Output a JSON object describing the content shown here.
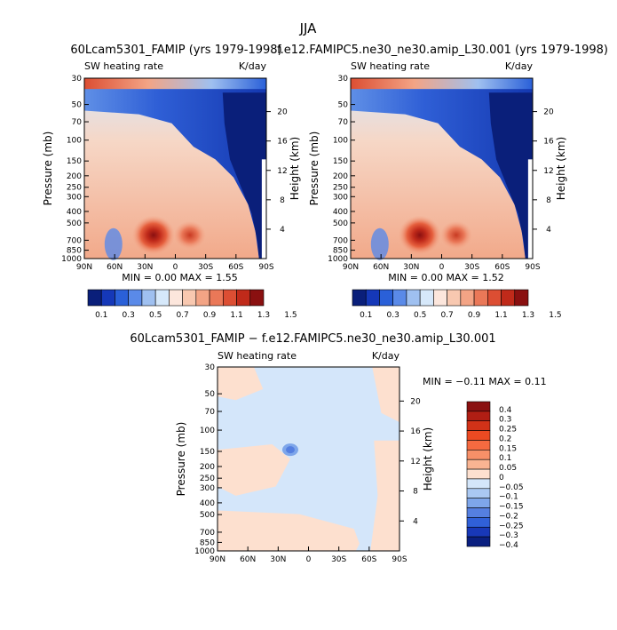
{
  "figure": {
    "main_title": "JJA",
    "colorbar_labels": [
      "0.1",
      "0.3",
      "0.5",
      "0.7",
      "0.9",
      "1.1",
      "1.3",
      "1.5"
    ],
    "colorbar_colors": [
      "#0a1f7a",
      "#1538b8",
      "#2a60d8",
      "#5a8ae8",
      "#9fc0f0",
      "#d6e8fa",
      "#fce6dc",
      "#f8c8b0",
      "#f3a485",
      "#ea7858",
      "#dc4e33",
      "#c02a1a",
      "#8a1010"
    ],
    "diff_colorbar_labels": [
      "0.4",
      "0.3",
      "0.25",
      "0.2",
      "0.15",
      "0.1",
      "0.05",
      "0",
      "−0.05",
      "−0.1",
      "−0.15",
      "−0.2",
      "−0.25",
      "−0.3",
      "−0.4"
    ],
    "diff_colorbar_colors": [
      "#8a1010",
      "#b01e14",
      "#d23218",
      "#ec4a22",
      "#f56a40",
      "#f79068",
      "#f9b492",
      "#fde0cf",
      "#d4e6fa",
      "#aac8f2",
      "#7ea6ea",
      "#557fe0",
      "#3060d8",
      "#1838b8",
      "#0a1f80"
    ]
  },
  "chart_data": [
    {
      "type": "heatmap",
      "title": "60Lcam5301_FAMIP (yrs 1979-1998)",
      "subtitle_left": "SW heating rate",
      "subtitle_right": "K/day",
      "xlabel": "",
      "ylabel": "Pressure (mb)",
      "ylabel_right": "Height (km)",
      "x_ticks": [
        "90N",
        "60N",
        "30N",
        "0",
        "30S",
        "60S",
        "90S"
      ],
      "y_ticks": [
        "1000",
        "850",
        "700",
        "500",
        "400",
        "300",
        "250",
        "200",
        "150",
        "100",
        "70",
        "50",
        "30"
      ],
      "y_ticks_right": [
        "4",
        "8",
        "12",
        "16",
        "20"
      ],
      "stats": "MIN =     0.00   MAX =     1.55",
      "min": 0.0,
      "max": 1.55
    },
    {
      "type": "heatmap",
      "title": "f.e12.FAMIPC5.ne30_ne30.amip_L30.001 (yrs 1979-1998)",
      "subtitle_left": "SW heating rate",
      "subtitle_right": "K/day",
      "xlabel": "",
      "ylabel": "Pressure (mb)",
      "ylabel_right": "Height (km)",
      "x_ticks": [
        "90N",
        "60N",
        "30N",
        "0",
        "30S",
        "60S",
        "90S"
      ],
      "y_ticks": [
        "1000",
        "850",
        "700",
        "500",
        "400",
        "300",
        "250",
        "200",
        "150",
        "100",
        "70",
        "50",
        "30"
      ],
      "y_ticks_right": [
        "4",
        "8",
        "12",
        "16",
        "20"
      ],
      "stats": "MIN =     0.00   MAX =     1.52",
      "min": 0.0,
      "max": 1.52
    },
    {
      "type": "heatmap",
      "title": "60Lcam5301_FAMIP − f.e12.FAMIPC5.ne30_ne30.amip_L30.001",
      "subtitle_left": "SW heating rate",
      "subtitle_right": "K/day",
      "xlabel": "",
      "ylabel": "Pressure (mb)",
      "ylabel_right": "Height (km)",
      "x_ticks": [
        "90N",
        "60N",
        "30N",
        "0",
        "30S",
        "60S",
        "90S"
      ],
      "y_ticks": [
        "1000",
        "850",
        "700",
        "500",
        "400",
        "300",
        "250",
        "200",
        "150",
        "100",
        "70",
        "50",
        "30"
      ],
      "y_ticks_right": [
        "4",
        "8",
        "12",
        "16",
        "20"
      ],
      "stats": "MIN =   −0.11   MAX =     0.11",
      "min": -0.11,
      "max": 0.11
    }
  ]
}
